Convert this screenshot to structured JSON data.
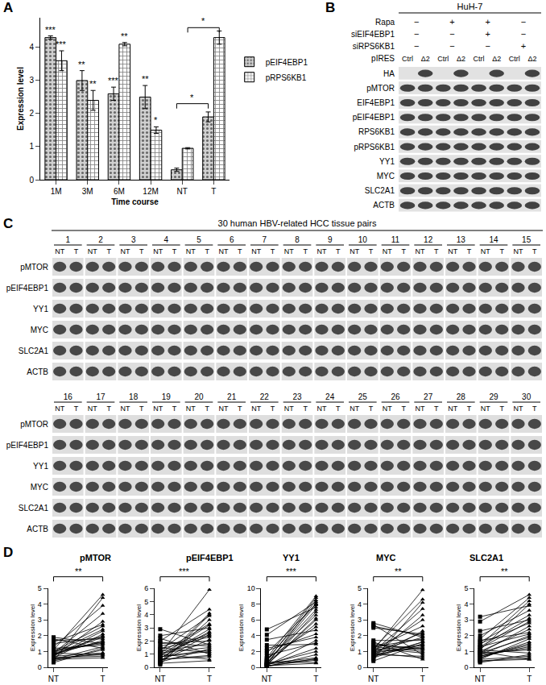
{
  "chart_data": [
    {
      "panel_label": "A",
      "type": "bar",
      "x_label": "Time course",
      "y_label": "Expression level",
      "categories": [
        "1M",
        "3M",
        "6M",
        "12M",
        "NT",
        "T"
      ],
      "series": [
        {
          "name": "pEIF4EBP1",
          "color": "#d0d0d0",
          "marker": "dots",
          "values": [
            4.3,
            3.0,
            2.6,
            2.5,
            0.3,
            1.9
          ],
          "errors": [
            0.05,
            0.3,
            0.2,
            0.35,
            0.05,
            0.15
          ],
          "significance": [
            "***",
            "**",
            "***",
            "**",
            null,
            null
          ]
        },
        {
          "name": "pRPS6KB1",
          "color": "#ffffff",
          "marker": "checkered",
          "values": [
            3.6,
            2.4,
            4.1,
            1.5,
            0.95,
            4.3
          ],
          "errors": [
            0.3,
            0.3,
            0.05,
            0.1,
            0.02,
            0.2
          ],
          "significance": [
            "***",
            "**",
            "**",
            "*",
            null,
            null
          ]
        }
      ],
      "comparisons": [
        {
          "from": "NT",
          "to": "T",
          "series": "pEIF4EBP1",
          "y": 2.3,
          "text": "*"
        },
        {
          "from": "NT",
          "to": "T",
          "series": "pRPS6KB1",
          "y": 4.6,
          "text": "*"
        }
      ],
      "ylim": [
        0,
        4.9
      ],
      "yticks": [
        0,
        1,
        2,
        3,
        4
      ],
      "legend": "right"
    },
    {
      "panel_label": "D",
      "type": "paired_line",
      "y_label": "Expression level",
      "categories": [
        "NT",
        "T"
      ],
      "panels": [
        {
          "title": "pMTOR",
          "significance": "**",
          "ylim": [
            0,
            5
          ],
          "yticks": [
            0,
            1,
            2,
            3,
            4,
            5
          ],
          "series": [
            {
              "name": "NT",
              "marker": "square",
              "values": [
                0.5,
                0.7,
                1.8,
                1.9,
                0.9,
                0.6,
                1.0,
                1.2,
                0.8,
                0.4,
                0.5,
                1.5,
                0.7,
                0.9,
                1.1,
                0.3,
                0.6,
                1.7,
                0.8,
                1.0,
                0.9,
                0.5,
                1.3,
                0.7,
                0.6,
                1.1,
                0.4,
                0.8,
                1.6,
                0.9
              ]
            },
            {
              "name": "T",
              "marker": "triangle-up",
              "values": [
                0.6,
                0.9,
                1.2,
                1.5,
                2.4,
                0.8,
                1.6,
                1.4,
                1.7,
                1.1,
                0.9,
                1.9,
                2.9,
                3.4,
                4.6,
                1.2,
                2.1,
                1.8,
                2.0,
                2.6,
                0.8,
                1.3,
                3.9,
                2.3,
                0.7,
                1.5,
                4.4,
                1.9,
                2.7,
                1.6
              ]
            }
          ]
        },
        {
          "title": "pEIF4EBP1",
          "significance": "***",
          "ylim": [
            0,
            6
          ],
          "yticks": [
            0,
            1,
            2,
            3,
            4,
            5,
            6
          ],
          "series": [
            {
              "name": "NT",
              "marker": "square",
              "values": [
                1.0,
                0.8,
                2.2,
                0.5,
                1.6,
                0.3,
                2.9,
                1.9,
                1.4,
                0.6,
                1.1,
                0.4,
                0.9,
                0.7,
                1.2,
                0.3,
                1.8,
                0.5,
                1.0,
                2.4,
                0.6,
                0.8,
                1.3,
                2.0,
                0.4,
                0.9,
                1.5,
                0.7,
                1.1,
                0.2
              ]
            },
            {
              "name": "T",
              "marker": "triangle-up",
              "values": [
                0.6,
                1.3,
                1.0,
                2.1,
                2.4,
                3.6,
                1.7,
                1.6,
                2.3,
                0.9,
                1.5,
                4.1,
                3.2,
                2.7,
                1.8,
                0.5,
                2.0,
                2.5,
                5.9,
                3.0,
                0.8,
                1.2,
                3.9,
                4.4,
                1.4,
                2.6,
                1.1,
                2.9,
                3.3,
                4.0
              ]
            }
          ]
        },
        {
          "title": "YY1",
          "significance": "***",
          "ylim": [
            0,
            10
          ],
          "yticks": [
            0,
            2,
            4,
            6,
            8,
            10
          ],
          "series": [
            {
              "name": "NT",
              "marker": "square",
              "values": [
                0.2,
                0.5,
                1.0,
                0.3,
                4.8,
                1.5,
                0.2,
                0.8,
                2.1,
                0.4,
                0.3,
                4.1,
                0.6,
                0.2,
                1.2,
                0.1,
                2.8,
                0.5,
                0.7,
                3.5,
                0.3,
                0.2,
                0.9,
                1.8,
                0.4,
                1.1,
                0.1,
                0.6,
                2.4,
                0.3
              ]
            },
            {
              "name": "T",
              "marker": "triangle-up",
              "values": [
                0.9,
                1.2,
                8.1,
                2.4,
                7.6,
                3.1,
                0.5,
                8.8,
                4.2,
                1.0,
                6.0,
                8.3,
                5.5,
                7.0,
                9.0,
                1.6,
                2.9,
                7.9,
                0.6,
                4.7,
                8.5,
                3.4,
                6.6,
                8.0,
                2.0,
                5.1,
                1.1,
                7.3,
                3.8,
                6.2
              ]
            }
          ]
        },
        {
          "title": "MYC",
          "significance": "**",
          "ylim": [
            0,
            5
          ],
          "yticks": [
            0,
            1,
            2,
            3,
            4,
            5
          ],
          "series": [
            {
              "name": "NT",
              "marker": "square",
              "values": [
                1.2,
                0.9,
                2.6,
                1.0,
                1.4,
                2.8,
                0.7,
                2.7,
                1.1,
                0.8,
                1.5,
                0.6,
                1.0,
                1.3,
                0.5,
                0.9,
                1.7,
                0.4,
                1.2,
                1.0,
                0.8,
                2.5,
                1.1,
                0.7,
                1.3,
                0.9,
                1.6,
                0.6,
                1.0,
                1.2
              ]
            },
            {
              "name": "T",
              "marker": "triangle-up",
              "values": [
                0.9,
                1.4,
                2.0,
                3.0,
                1.2,
                1.9,
                1.6,
                0.8,
                4.9,
                1.3,
                1.1,
                2.3,
                3.7,
                1.8,
                4.1,
                0.6,
                1.7,
                1.5,
                2.6,
                1.2,
                0.7,
                2.1,
                1.4,
                3.3,
                1.0,
                2.2,
                0.5,
                1.6,
                1.9,
                4.3
              ]
            }
          ]
        },
        {
          "title": "SLC2A1",
          "significance": "**",
          "ylim": [
            0,
            5
          ],
          "yticks": [
            0,
            1,
            2,
            3,
            4,
            5
          ],
          "series": [
            {
              "name": "NT",
              "marker": "square",
              "values": [
                1.0,
                0.8,
                3.2,
                1.3,
                0.6,
                2.9,
                1.1,
                0.5,
                1.6,
                0.9,
                0.4,
                1.4,
                2.3,
                0.7,
                1.0,
                0.3,
                1.8,
                0.6,
                1.2,
                0.9,
                2.0,
                0.8,
                0.5,
                1.5,
                1.1,
                0.7,
                1.3,
                0.4,
                0.9,
                1.7
              ]
            },
            {
              "name": "T",
              "marker": "triangle-up",
              "values": [
                0.5,
                1.2,
                3.9,
                2.1,
                1.5,
                4.6,
                0.9,
                1.8,
                3.3,
                2.6,
                0.6,
                4.2,
                3.0,
                1.4,
                2.4,
                0.8,
                4.4,
                1.6,
                2.9,
                1.1,
                3.6,
                2.0,
                0.7,
                2.8,
                4.0,
                1.3,
                3.1,
                0.5,
                1.9,
                2.2
              ]
            }
          ]
        }
      ]
    }
  ],
  "panel_B": {
    "panel_label": "B",
    "cell_line": "HuH-7",
    "conditions": [
      {
        "name": "Rapa",
        "signs": [
          "−",
          "+",
          "+",
          "−"
        ]
      },
      {
        "name": "siEIF4EBP1",
        "signs": [
          "−",
          "−",
          "+",
          "−"
        ]
      },
      {
        "name": "siRPS6KB1",
        "signs": [
          "−",
          "−",
          "−",
          "+"
        ]
      }
    ],
    "lane_row": {
      "name": "pIRES",
      "lanes": [
        "Ctrl",
        "Δ2",
        "Ctrl",
        "Δ2",
        "Ctrl",
        "Δ2",
        "Ctrl",
        "Δ2"
      ]
    },
    "blots": [
      {
        "name": "HA",
        "absent": "Ctrl"
      },
      {
        "name": "pMTOR"
      },
      {
        "name": "EIF4EBP1"
      },
      {
        "name": "pEIF4EBP1"
      },
      {
        "name": "RPS6KB1"
      },
      {
        "name": "pRPS6KB1"
      },
      {
        "name": "YY1"
      },
      {
        "name": "MYC"
      },
      {
        "name": "SLC2A1"
      },
      {
        "name": "ACTB"
      }
    ]
  },
  "panel_C": {
    "panel_label": "C",
    "title": "30 human HBV-related HCC tissue pairs",
    "samples": [
      "1",
      "2",
      "3",
      "4",
      "5",
      "6",
      "7",
      "8",
      "9",
      "10",
      "11",
      "12",
      "13",
      "14",
      "15",
      "16",
      "17",
      "18",
      "19",
      "20",
      "21",
      "22",
      "23",
      "24",
      "25",
      "26",
      "27",
      "28",
      "29",
      "30"
    ],
    "lanes": [
      "NT",
      "T"
    ],
    "blots": [
      "pMTOR",
      "pEIF4EBP1",
      "YY1",
      "MYC",
      "SLC2A1",
      "ACTB"
    ]
  }
}
